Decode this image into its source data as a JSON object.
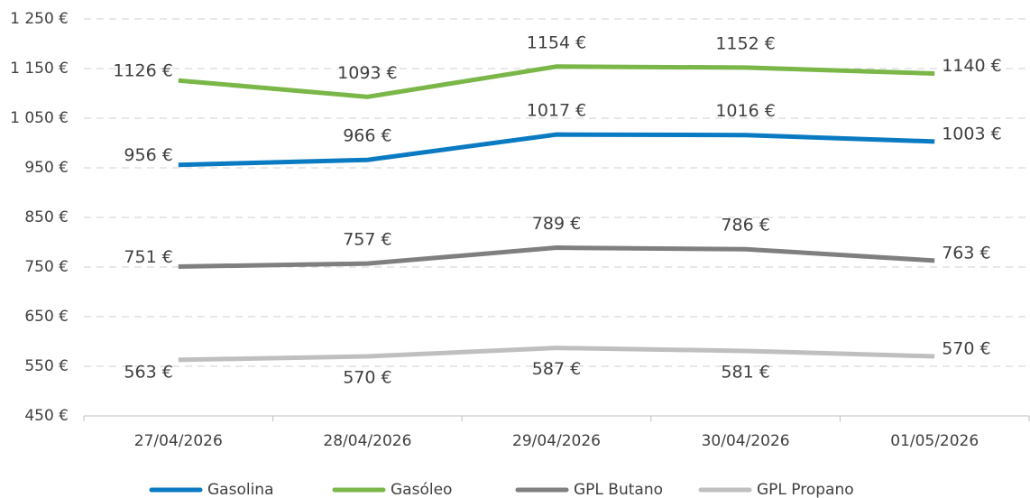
{
  "chart_data": {
    "type": "line",
    "categories": [
      "27/04/2026",
      "28/04/2026",
      "29/04/2026",
      "30/04/2026",
      "01/05/2026"
    ],
    "series": [
      {
        "name": "Gasolina",
        "color": "#0a7ac2",
        "values": [
          956,
          966,
          1017,
          1016,
          1003
        ],
        "value_labels": [
          "956 €",
          "966 €",
          "1017 €",
          "1016 €",
          "1003 €"
        ]
      },
      {
        "name": "Gasóleo",
        "color": "#7ab648",
        "values": [
          1126,
          1093,
          1154,
          1152,
          1140
        ],
        "value_labels": [
          "1126 €",
          "1093 €",
          "1154 €",
          "1152 €",
          "1140 €"
        ]
      },
      {
        "name": "GPL Butano",
        "color": "#7f7f7f",
        "values": [
          751,
          757,
          789,
          786,
          763
        ],
        "value_labels": [
          "751 €",
          "757 €",
          "789 €",
          "786 €",
          "763 €"
        ]
      },
      {
        "name": "GPL Propano",
        "color": "#bfbfbf",
        "values": [
          563,
          570,
          587,
          581,
          570
        ],
        "value_labels": [
          "563 €",
          "570 €",
          "587 €",
          "581 €",
          "570 €"
        ]
      }
    ],
    "ylim": [
      450,
      1250
    ],
    "yticks": [
      {
        "value": 450,
        "label": "450 €"
      },
      {
        "value": 550,
        "label": "550 €"
      },
      {
        "value": 650,
        "label": "650 €"
      },
      {
        "value": 750,
        "label": "750 €"
      },
      {
        "value": 850,
        "label": "850 €"
      },
      {
        "value": 950,
        "label": "950 €"
      },
      {
        "value": 1050,
        "label": "1 050 €"
      },
      {
        "value": 1150,
        "label": "1 150 €"
      },
      {
        "value": 1250,
        "label": "1 250 €"
      }
    ],
    "grid": true,
    "legend": "bottom"
  }
}
